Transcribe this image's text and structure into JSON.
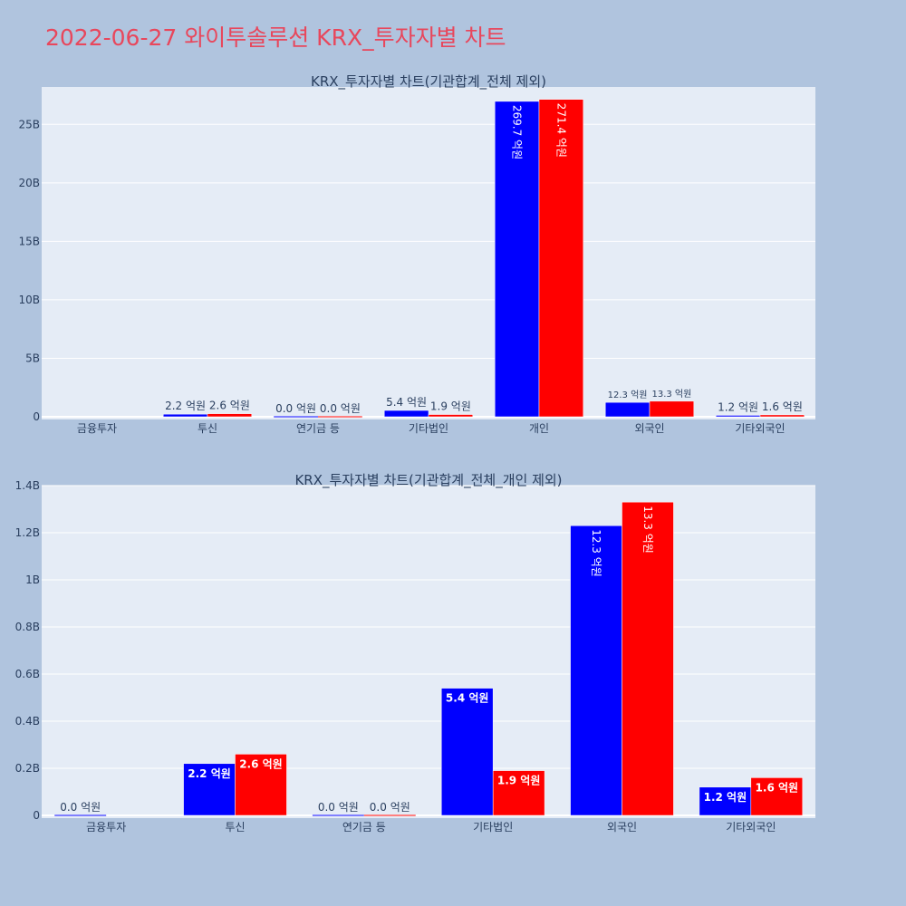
{
  "page": {
    "title": "2022-06-27 와이투솔루션 KRX_투자자별 차트"
  },
  "colors": {
    "background": "#b0c4de",
    "plot_bg": "#e5ecf6",
    "title": "#e8475c",
    "series_a": "#0000ff",
    "series_b": "#ff0000",
    "grid": "#ffffff",
    "text": "#2a3f5f"
  },
  "chart_data": [
    {
      "type": "bar",
      "title": "KRX_투자자별 차트(기관합계_전체 제외)",
      "categories": [
        "금융투자",
        "투신",
        "연기금 등",
        "기타법인",
        "개인",
        "외국인",
        "기타외국인"
      ],
      "yticks": [
        "0",
        "5B",
        "10B",
        "15B",
        "20B",
        "25B"
      ],
      "ytick_values": [
        0,
        5000000000,
        10000000000,
        15000000000,
        20000000000,
        25000000000
      ],
      "ylim": [
        0,
        28200000000
      ],
      "grid": true,
      "series": [
        {
          "color": "#0000ff",
          "values": [
            null,
            220000000,
            0,
            540000000,
            26970000000,
            1230000000,
            120000000
          ],
          "labels": [
            null,
            "2.2 억원",
            "0.0 억원",
            "5.4 억원",
            "269.7 억원",
            "12.3 억원",
            "1.2 억원"
          ]
        },
        {
          "color": "#ff0000",
          "values": [
            null,
            260000000,
            0,
            190000000,
            27140000000,
            1330000000,
            160000000
          ],
          "labels": [
            null,
            "2.6 억원",
            "0.0 억원",
            "1.9 억원",
            "271.4 억원",
            "13.3 억원",
            "1.6 억원"
          ]
        }
      ]
    },
    {
      "type": "bar",
      "title": "KRX_투자자별 차트(기관합계_전체_개인 제외)",
      "categories": [
        "금융투자",
        "투신",
        "연기금 등",
        "기타법인",
        "외국인",
        "기타외국인"
      ],
      "yticks": [
        "0",
        "0.2B",
        "0.4B",
        "0.6B",
        "0.8B",
        "1B",
        "1.2B",
        "1.4B"
      ],
      "ytick_values": [
        0,
        200000000,
        400000000,
        600000000,
        800000000,
        1000000000,
        1200000000,
        1400000000
      ],
      "ylim": [
        0,
        1400000000
      ],
      "grid": true,
      "series": [
        {
          "color": "#0000ff",
          "values": [
            0,
            220000000,
            0,
            540000000,
            1230000000,
            120000000
          ],
          "labels": [
            "0.0 억원",
            "2.2 억원",
            "0.0 억원",
            "5.4 억원",
            "12.3 억원",
            "1.2 억원"
          ]
        },
        {
          "color": "#ff0000",
          "values": [
            null,
            260000000,
            0,
            190000000,
            1330000000,
            160000000
          ],
          "labels": [
            null,
            "2.6 억원",
            "0.0 억원",
            "1.9 억원",
            "13.3 억원",
            "1.6 억원"
          ]
        }
      ]
    }
  ]
}
